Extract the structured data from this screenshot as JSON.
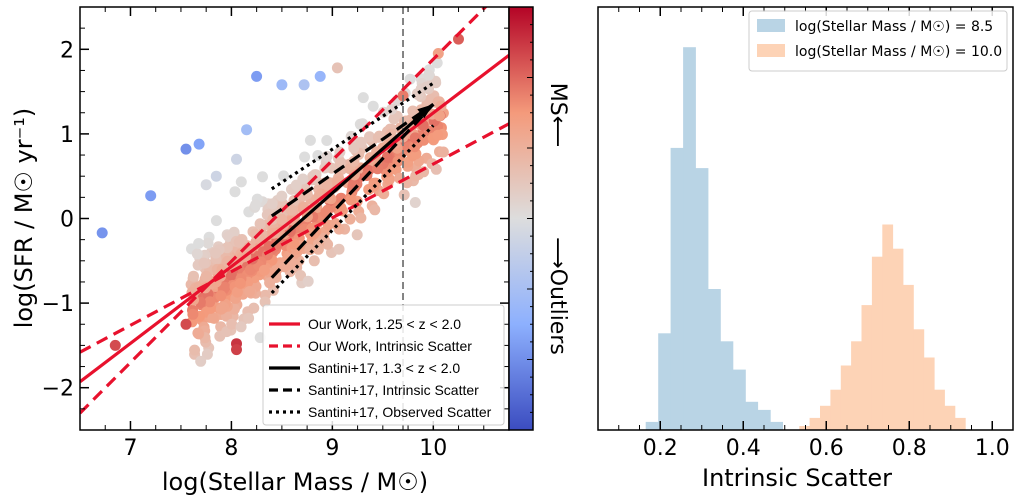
{
  "chart_data": [
    {
      "type": "scatter",
      "xlabel": "log(Stellar Mass / M☉)",
      "ylabel": "log(SFR / M☉ yr⁻¹)",
      "xlim": [
        6.5,
        10.75
      ],
      "ylim": [
        -2.5,
        2.5
      ],
      "x_ticks": [
        7,
        8,
        9,
        10
      ],
      "y_ticks": [
        -2,
        -1,
        0,
        1,
        2
      ],
      "y_tick_labels": [
        "−2",
        "−1",
        "0",
        "1",
        "2"
      ],
      "vline_x": 9.7,
      "colorbar": {
        "label_top": "MS⟵",
        "label_bottom": "⟶Outliers",
        "colors": [
          "#3b4cc0",
          "#8db0fe",
          "#dddddd",
          "#f49a7b",
          "#b40426"
        ]
      },
      "series": [
        {
          "name": "Our Work, 1.25 < z < 2.0",
          "style": "solid",
          "color": "#e8112d",
          "points": [
            [
              6.5,
              -1.93
            ],
            [
              10.75,
              1.93
            ]
          ]
        },
        {
          "name": "Our Work, Intrinsic Scatter",
          "style": "dashed",
          "color": "#e8112d",
          "points": [
            [
              6.5,
              -2.3
            ],
            [
              10.6,
              2.6
            ]
          ]
        },
        {
          "name": "",
          "style": "dashed",
          "color": "#e8112d",
          "points": [
            [
              6.5,
              -1.58
            ],
            [
              10.75,
              1.12
            ]
          ]
        },
        {
          "name": "Santini+17, 1.3 < z < 2.0",
          "style": "solid",
          "color": "#000000",
          "points": [
            [
              8.4,
              -0.33
            ],
            [
              10.0,
              1.35
            ]
          ]
        },
        {
          "name": "Santini+17, Intrinsic Scatter",
          "style": "dashed",
          "color": "#000000",
          "points": [
            [
              8.4,
              0.03
            ],
            [
              10.0,
              1.35
            ]
          ],
          "points_b": [
            [
              8.4,
              -0.7
            ],
            [
              10.0,
              1.35
            ]
          ]
        },
        {
          "name": "Santini+17, Observed Scatter",
          "style": "dotted",
          "color": "#000000",
          "points": [
            [
              8.4,
              0.35
            ],
            [
              10.0,
              1.6
            ]
          ],
          "points_b": [
            [
              8.4,
              -0.88
            ],
            [
              10.0,
              1.1
            ]
          ]
        }
      ],
      "outlier_points": [
        {
          "x": 6.72,
          "y": -0.17,
          "c": 0.18
        },
        {
          "x": 7.2,
          "y": 0.27,
          "c": 0.2
        },
        {
          "x": 7.55,
          "y": 0.82,
          "c": 0.17
        },
        {
          "x": 7.68,
          "y": 0.88,
          "c": 0.22
        },
        {
          "x": 8.25,
          "y": 1.68,
          "c": 0.2
        },
        {
          "x": 8.5,
          "y": 1.58,
          "c": 0.3
        },
        {
          "x": 8.72,
          "y": 1.58,
          "c": 0.35
        },
        {
          "x": 8.88,
          "y": 1.68,
          "c": 0.28
        },
        {
          "x": 8.15,
          "y": 1.05,
          "c": 0.32
        },
        {
          "x": 8.05,
          "y": 0.7,
          "c": 0.45
        },
        {
          "x": 7.85,
          "y": 0.5,
          "c": 0.45
        },
        {
          "x": 7.75,
          "y": 0.4,
          "c": 0.48
        },
        {
          "x": 9.05,
          "y": 1.78,
          "c": 0.6
        },
        {
          "x": 10.25,
          "y": 2.12,
          "c": 0.85
        },
        {
          "x": 10.05,
          "y": 1.95,
          "c": 0.72
        },
        {
          "x": 6.85,
          "y": -1.5,
          "c": 0.88
        },
        {
          "x": 7.55,
          "y": -1.25,
          "c": 0.88
        },
        {
          "x": 8.05,
          "y": -1.48,
          "c": 0.92
        },
        {
          "x": 8.05,
          "y": -1.55,
          "c": 0.9
        },
        {
          "x": 9.7,
          "y": 1.45,
          "c": 0.8
        },
        {
          "x": 9.9,
          "y": 1.1,
          "c": 0.82
        }
      ]
    },
    {
      "type": "bar",
      "xlabel": "Intrinsic Scatter",
      "xlim": [
        0.05,
        1.05
      ],
      "x_ticks": [
        0.2,
        0.4,
        0.6,
        0.8,
        1.0
      ],
      "x_tick_labels": [
        "0.2",
        "0.4",
        "0.6",
        "0.8",
        "1.0"
      ],
      "series": [
        {
          "name": "log(Stellar Mass / M☉) = 8.5",
          "color": "#b9d4e5",
          "bins": [
            [
              0.165,
              0.195,
              0.02
            ],
            [
              0.195,
              0.225,
              0.24
            ],
            [
              0.225,
              0.255,
              0.7
            ],
            [
              0.255,
              0.285,
              0.95
            ],
            [
              0.285,
              0.315,
              0.65
            ],
            [
              0.315,
              0.345,
              0.35
            ],
            [
              0.345,
              0.375,
              0.22
            ],
            [
              0.375,
              0.405,
              0.15
            ],
            [
              0.405,
              0.435,
              0.07
            ],
            [
              0.435,
              0.465,
              0.05
            ],
            [
              0.465,
              0.495,
              0.02
            ]
          ]
        },
        {
          "name": "log(Stellar Mass / M☉) = 10.0",
          "color": "#fdd3b6",
          "bins": [
            [
              0.535,
              0.56,
              0.01
            ],
            [
              0.56,
              0.585,
              0.03
            ],
            [
              0.585,
              0.61,
              0.06
            ],
            [
              0.61,
              0.635,
              0.1
            ],
            [
              0.635,
              0.66,
              0.16
            ],
            [
              0.66,
              0.685,
              0.22
            ],
            [
              0.685,
              0.71,
              0.31
            ],
            [
              0.71,
              0.735,
              0.43
            ],
            [
              0.735,
              0.76,
              0.51
            ],
            [
              0.76,
              0.785,
              0.45
            ],
            [
              0.785,
              0.81,
              0.36
            ],
            [
              0.81,
              0.835,
              0.25
            ],
            [
              0.835,
              0.86,
              0.18
            ],
            [
              0.86,
              0.885,
              0.1
            ],
            [
              0.885,
              0.91,
              0.06
            ],
            [
              0.91,
              0.935,
              0.03
            ]
          ]
        }
      ]
    }
  ]
}
